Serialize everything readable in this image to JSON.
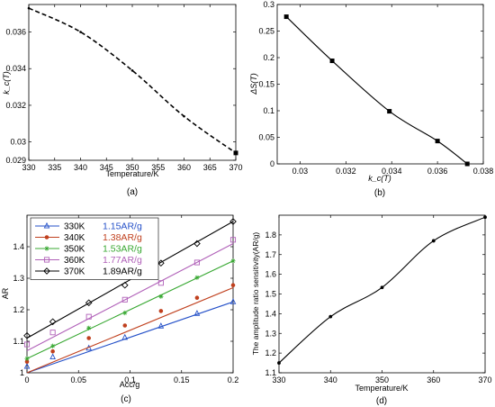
{
  "chart_data": [
    {
      "id": "a",
      "type": "line",
      "caption": "(a)",
      "xlabel": "Temperature/K",
      "ylabel": "k_c(T)",
      "xlim": [
        330,
        370
      ],
      "ylim": [
        0.029,
        0.0375
      ],
      "xticks": [
        330,
        335,
        340,
        345,
        350,
        355,
        360,
        365,
        370
      ],
      "yticks": [
        0.029,
        0.03,
        0.032,
        0.034,
        0.036
      ],
      "ytick_labels": [
        "0.029",
        "0.03",
        "0.032",
        "0.034",
        "0.036"
      ],
      "series": [
        {
          "line_style": "dashed",
          "color": "#000000",
          "x": [
            330,
            340,
            350,
            360,
            370
          ],
          "y": [
            0.0373,
            0.036,
            0.0339,
            0.0314,
            0.0294
          ]
        }
      ]
    },
    {
      "id": "b",
      "type": "line",
      "caption": "(b)",
      "xlabel": "k_c(T)",
      "ylabel": "ΔS(T)",
      "xlim": [
        0.029,
        0.038
      ],
      "ylim": [
        0,
        0.3
      ],
      "xticks": [
        0.03,
        0.032,
        0.034,
        0.036,
        0.038
      ],
      "xtick_labels": [
        "0.03",
        "0.032",
        "0.034",
        "0.036",
        "0.038"
      ],
      "yticks": [
        0,
        0.05,
        0.1,
        0.15,
        0.2,
        0.25,
        0.3
      ],
      "ytick_labels": [
        "0",
        "0.05",
        "0.1",
        "0.15",
        "0.2",
        "0.25",
        "0.3"
      ],
      "series": [
        {
          "line_style": "solid",
          "color": "#000000",
          "x": [
            0.0294,
            0.0314,
            0.0339,
            0.036,
            0.0373
          ],
          "y": [
            0.277,
            0.194,
            0.099,
            0.043,
            0.0
          ]
        }
      ]
    },
    {
      "id": "c",
      "type": "line",
      "caption": "(c)",
      "xlabel": "Acc/g",
      "ylabel": "AR",
      "xlim": [
        0,
        0.2
      ],
      "ylim": [
        1.0,
        1.5
      ],
      "xticks": [
        0,
        0.05,
        0.1,
        0.15,
        0.2
      ],
      "xtick_labels": [
        "0",
        "0.05",
        "0.1",
        "0.15",
        "0.2"
      ],
      "yticks": [
        1.0,
        1.1,
        1.2,
        1.3,
        1.4
      ],
      "ytick_labels": [
        "1",
        "1.1",
        "1.2",
        "1.3",
        "1.4"
      ],
      "legend": "top-left",
      "x": [
        0.0,
        0.025,
        0.06,
        0.095,
        0.13,
        0.165,
        0.2
      ],
      "series": [
        {
          "name": "330K",
          "sensitivity": "1.15AR/g",
          "color": "#2450c8",
          "marker": "triangle",
          "fit": [
            1.0,
            1.225
          ],
          "values": [
            1.02,
            1.05,
            1.078,
            1.112,
            1.148,
            1.188,
            1.225
          ]
        },
        {
          "name": "340K",
          "sensitivity": "1.38AR/g",
          "color": "#c0401e",
          "marker": "dot",
          "fit": [
            1.0,
            1.27
          ],
          "values": [
            1.035,
            1.068,
            1.11,
            1.15,
            1.196,
            1.238,
            1.278
          ]
        },
        {
          "name": "350K",
          "sensitivity": "1.53AR/g",
          "color": "#38a832",
          "marker": "star",
          "fit": [
            1.045,
            1.355
          ],
          "values": [
            1.045,
            1.085,
            1.142,
            1.19,
            1.242,
            1.302,
            1.355
          ]
        },
        {
          "name": "360K",
          "sensitivity": "1.77AR/g",
          "color": "#b060b8",
          "marker": "square",
          "fit": [
            1.07,
            1.41
          ],
          "values": [
            1.09,
            1.128,
            1.178,
            1.232,
            1.285,
            1.35,
            1.422
          ]
        },
        {
          "name": "370K",
          "sensitivity": "1.89AR/g",
          "color": "#000000",
          "marker": "diamond",
          "fit": [
            1.11,
            1.48
          ],
          "values": [
            1.118,
            1.162,
            1.222,
            1.278,
            1.348,
            1.41,
            1.48
          ]
        }
      ]
    },
    {
      "id": "d",
      "type": "line",
      "caption": "(d)",
      "xlabel": "Temperature/K",
      "ylabel": "The amplitude ratio sensitivity(AR/g)",
      "xlim": [
        330,
        370
      ],
      "ylim": [
        1.1,
        1.9
      ],
      "xticks": [
        330,
        340,
        350,
        360,
        370
      ],
      "yticks": [
        1.1,
        1.2,
        1.3,
        1.4,
        1.5,
        1.6,
        1.7,
        1.8
      ],
      "ytick_labels": [
        "1.1",
        "1.2",
        "1.3",
        "1.4",
        "1.5",
        "1.6",
        "1.7",
        "1.8"
      ],
      "series": [
        {
          "line_style": "solid",
          "color": "#000000",
          "x": [
            330,
            340,
            350,
            360,
            370
          ],
          "y": [
            1.15,
            1.385,
            1.533,
            1.77,
            1.89
          ]
        }
      ]
    }
  ]
}
